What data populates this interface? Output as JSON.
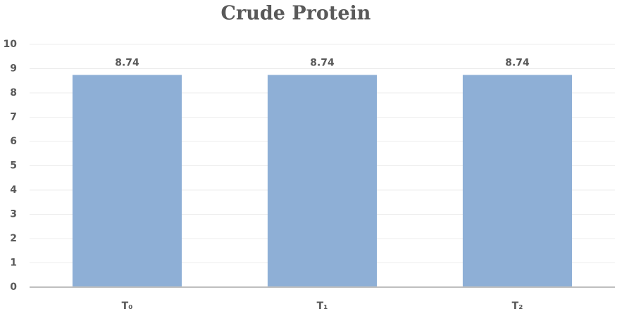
{
  "chart_data": {
    "type": "bar",
    "title": "Crude Protein",
    "categories": [
      "T₀",
      "T₁",
      "T₂"
    ],
    "values": [
      8.74,
      8.74,
      8.74
    ],
    "color": "#8eafd6",
    "ylim": [
      0,
      10
    ],
    "yticks": [
      0,
      1,
      2,
      3,
      4,
      5,
      6,
      7,
      8,
      9,
      10
    ],
    "grid": true
  }
}
